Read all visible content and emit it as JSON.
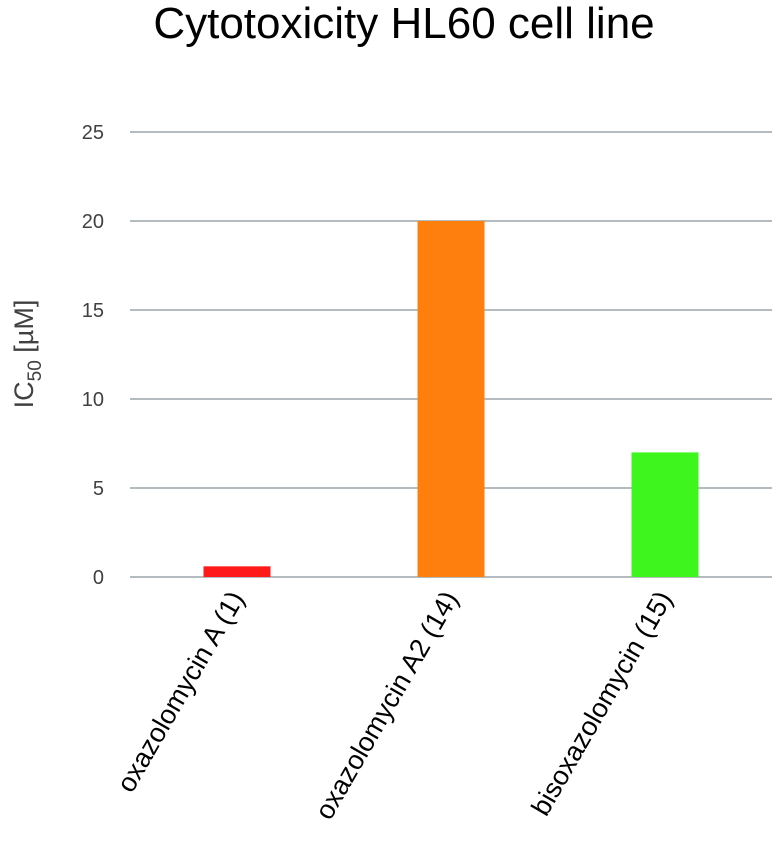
{
  "chart_data": {
    "type": "bar",
    "title": "Cytotoxicity HL60 cell line",
    "ylabel_main": "IC",
    "ylabel_sub": "50",
    "ylabel_unit": " [µM]",
    "xlabel": "",
    "categories": [
      "oxazolomycin A (1)",
      "oxazolomycin A2 (14)",
      "bisoxazolomycin (15)"
    ],
    "values": [
      0.6,
      20,
      7
    ],
    "colors": [
      "#ff1a1a",
      "#ff7f0e",
      "#3ef51e"
    ],
    "ylim": [
      0,
      25
    ],
    "yticks": [
      0,
      5,
      10,
      15,
      20,
      25
    ],
    "grid": true,
    "legend": "none"
  }
}
